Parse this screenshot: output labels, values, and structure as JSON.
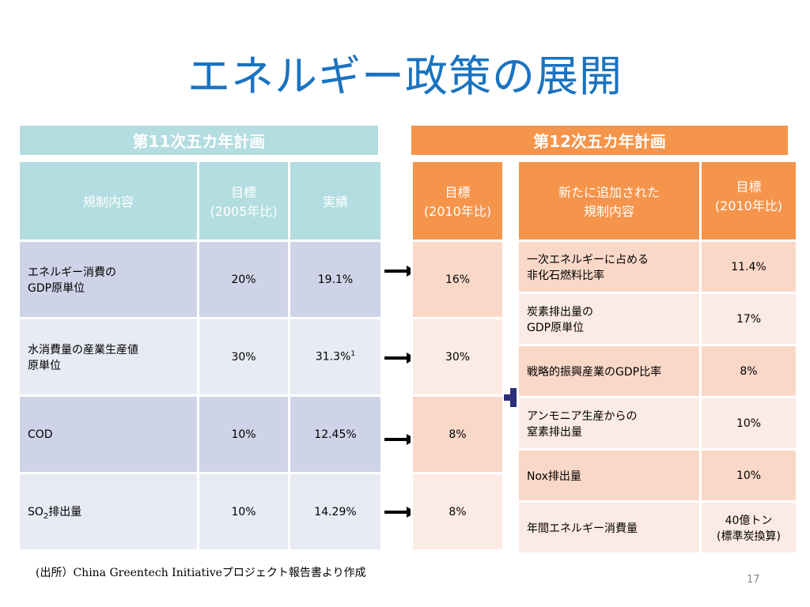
{
  "title": "エネルギー政策の展開",
  "plan11": {
    "header": "第11次五カ年計画",
    "columns": [
      "規制内容",
      "目標\n(2005年比)",
      "実績"
    ],
    "rows": [
      {
        "label": "エネルギー消費の\nGDP原単位",
        "target": "20%",
        "actual": "19.1%",
        "actual_sup": ""
      },
      {
        "label": "水消費量の産業生産値\n原単位",
        "target": "30%",
        "actual": "31.3%",
        "actual_sup": "1"
      },
      {
        "label": "COD",
        "target": "10%",
        "actual": "12.45%",
        "actual_sup": ""
      },
      {
        "label_main": "SO",
        "label_sub": "2",
        "label_rest": "排出量",
        "target": "10%",
        "actual": "14.29%",
        "actual_sup": ""
      }
    ]
  },
  "plan12": {
    "header": "第12次五カ年計画",
    "target_header": "目標\n(2010年比)",
    "targets": [
      "16%",
      "30%",
      "8%",
      "8%"
    ],
    "new_header": "新たに追加された\n規制内容",
    "new_target_header": "目標\n(2010年比)",
    "new_rows": [
      {
        "label": "一次エネルギーに占める\n非化石燃料比率",
        "target": "11.4%"
      },
      {
        "label": "炭素排出量の\nGDP原単位",
        "target": "17%"
      },
      {
        "label": "戦略的振興産業のGDP比率",
        "target": "8%"
      },
      {
        "label": "アンモニア生産からの\n窒素排出量",
        "target": "10%"
      },
      {
        "label": "Nox排出量",
        "target": "10%"
      },
      {
        "label": "年間エネルギー消費量",
        "target": "40億トン\n(標準炭換算)"
      }
    ]
  },
  "source": "(出所）China Greentech Initiativeプロジェクト報告書より作成",
  "page_number": "17",
  "colors": {
    "title": "#1a73c0",
    "teal": "#b3dde0",
    "orange": "#f5944b",
    "plus": "#2b2f7a"
  }
}
